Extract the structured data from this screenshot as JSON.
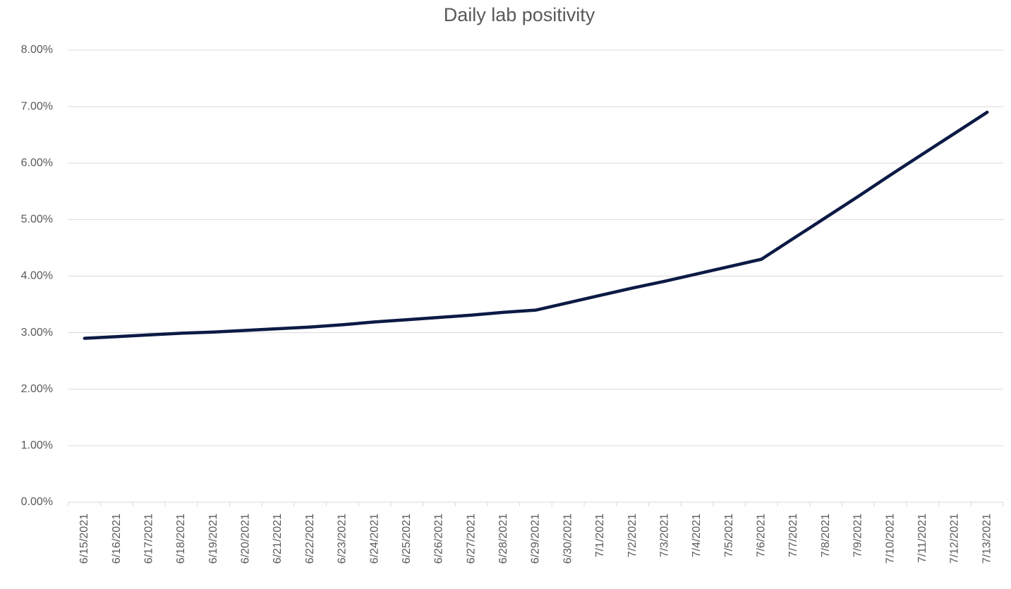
{
  "chart_data": {
    "type": "line",
    "title": "Daily lab positivity",
    "categories": [
      "6/15/2021",
      "6/16/2021",
      "6/17/2021",
      "6/18/2021",
      "6/19/2021",
      "6/20/2021",
      "6/21/2021",
      "6/22/2021",
      "6/23/2021",
      "6/24/2021",
      "6/25/2021",
      "6/26/2021",
      "6/27/2021",
      "6/28/2021",
      "6/29/2021",
      "6/30/2021",
      "7/1/2021",
      "7/2/2021",
      "7/3/2021",
      "7/4/2021",
      "7/5/2021",
      "7/6/2021",
      "7/7/2021",
      "7/8/2021",
      "7/9/2021",
      "7/10/2021",
      "7/11/2021",
      "7/12/2021",
      "7/13/2021"
    ],
    "values": [
      2.9,
      2.93,
      2.96,
      2.99,
      3.01,
      3.04,
      3.07,
      3.1,
      3.14,
      3.19,
      3.23,
      3.27,
      3.31,
      3.36,
      3.4,
      3.53,
      3.66,
      3.79,
      3.91,
      4.04,
      4.17,
      4.3,
      4.67,
      5.04,
      5.41,
      5.79,
      6.16,
      6.53,
      6.9
    ],
    "color": "#0c1a45",
    "ylim": [
      0,
      8
    ],
    "yticks": [
      {
        "value": 0,
        "label": "0.00%"
      },
      {
        "value": 1,
        "label": "1.00%"
      },
      {
        "value": 2,
        "label": "2.00%"
      },
      {
        "value": 3,
        "label": "3.00%"
      },
      {
        "value": 4,
        "label": "4.00%"
      },
      {
        "value": 5,
        "label": "5.00%"
      },
      {
        "value": 6,
        "label": "6.00%"
      },
      {
        "value": 7,
        "label": "7.00%"
      },
      {
        "value": 8,
        "label": "8.00%"
      }
    ],
    "grid": true
  }
}
